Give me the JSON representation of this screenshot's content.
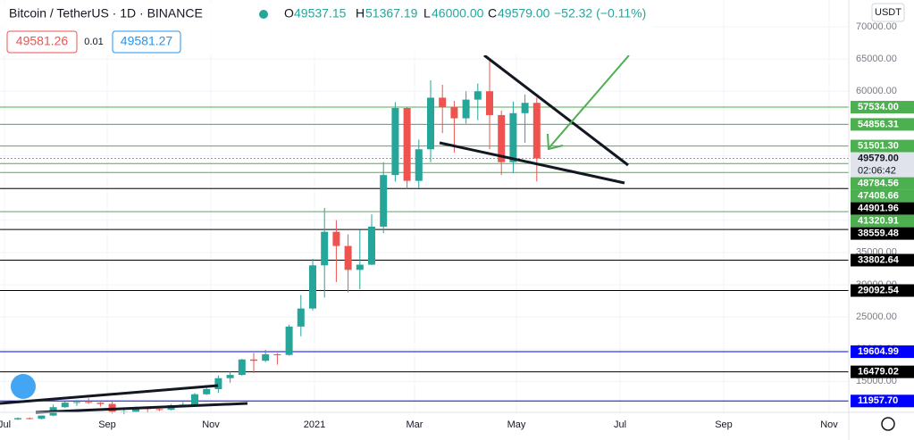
{
  "header": {
    "symbol": "Bitcoin / TetherUS · 1D · BINANCE",
    "open_key": "O",
    "open": "49537.15",
    "high_key": "H",
    "high": "51367.19",
    "low_key": "L",
    "low": "46000.00",
    "close_key": "C",
    "close": "49579.00",
    "change": "−52.32 (−0.11%)",
    "sell": "49581.26",
    "spread": "0.01",
    "buy": "49581.27",
    "currency": "USDT"
  },
  "chart_data": {
    "type": "candlestick",
    "open": [
      9100,
      9300,
      9200,
      9700,
      11000,
      11700,
      11800,
      11700,
      11500,
      10300,
      10300,
      10900,
      10700,
      10600,
      11300,
      11400,
      13000,
      13800,
      15500,
      16000,
      18400,
      18200,
      19200,
      19100,
      23500,
      26300,
      33000,
      38200,
      36000,
      32300,
      33100,
      39000,
      47000,
      57400,
      46100,
      51000,
      59000,
      57500,
      55800,
      58700,
      60000,
      56300,
      49000,
      56600,
      58200
    ],
    "high": [
      9400,
      9400,
      9700,
      11400,
      11900,
      12100,
      12400,
      11800,
      12100,
      10800,
      11100,
      11000,
      10900,
      11500,
      11800,
      13200,
      14000,
      15900,
      16500,
      18500,
      19400,
      19900,
      19400,
      23800,
      28400,
      34000,
      41900,
      40000,
      37800,
      38500,
      40900,
      49000,
      58300,
      57500,
      52500,
      61700,
      61000,
      58500,
      60000,
      61200,
      64800,
      57000,
      58400,
      59500,
      59000
    ],
    "low": [
      9000,
      9100,
      9100,
      9600,
      10900,
      11200,
      11500,
      11100,
      10000,
      9900,
      10200,
      10100,
      10400,
      10500,
      11200,
      11300,
      12900,
      13200,
      14800,
      15900,
      16300,
      18000,
      17600,
      19000,
      22000,
      26000,
      28000,
      30400,
      28800,
      29300,
      33000,
      38000,
      46000,
      44900,
      45000,
      49000,
      53500,
      50500,
      55000,
      55500,
      51000,
      47000,
      47300,
      52000,
      46000
    ],
    "close": [
      9300,
      9200,
      9700,
      11000,
      11700,
      11800,
      11700,
      11500,
      10300,
      10300,
      10900,
      10700,
      10600,
      11300,
      11400,
      13000,
      13800,
      15500,
      16000,
      18400,
      18200,
      19200,
      19100,
      23500,
      26300,
      33000,
      38200,
      36000,
      32300,
      33100,
      39000,
      47000,
      57400,
      46100,
      51000,
      59000,
      57500,
      55800,
      58700,
      60000,
      56300,
      49000,
      56600,
      58200,
      49579
    ],
    "up_color": "#26a69a",
    "down_color": "#ef5350",
    "ylim": [
      10200,
      74150
    ],
    "yticks": [
      {
        "value": 15000,
        "label": "15000.00"
      },
      {
        "value": 20000,
        "label": "20000.00"
      },
      {
        "value": 25000,
        "label": "25000.00"
      },
      {
        "value": 30000,
        "label": "30000.00"
      },
      {
        "value": 35000,
        "label": "35000.00"
      },
      {
        "value": 40000,
        "label": "40000.00"
      },
      {
        "value": 45000,
        "label": "45000.00"
      },
      {
        "value": 50000,
        "label": "50000.00"
      },
      {
        "value": 55000,
        "label": "55000.00"
      },
      {
        "value": 60000,
        "label": "60000.00"
      },
      {
        "value": 65000,
        "label": "65000.00"
      },
      {
        "value": 70000,
        "label": "70000.00"
      }
    ],
    "x_labels": [
      "Jul",
      "Sep",
      "Nov",
      "2021",
      "Mar",
      "May",
      "Jul",
      "Sep",
      "Nov"
    ],
    "levels": [
      {
        "value": 57534,
        "label": "57534.00",
        "color": "#4caf50"
      },
      {
        "value": 54856.31,
        "color": "#4caf50"
      },
      {
        "value": 51501.3,
        "label": "51501.30",
        "color": "#4caf50"
      },
      {
        "value": 48784.56,
        "color": "#4caf50"
      },
      {
        "value": 47408.66,
        "color": "#4caf50"
      },
      {
        "value": 44901.96,
        "color": "#000000"
      },
      {
        "value": 41320.91,
        "color": "#4caf50"
      },
      {
        "value": 38559.48,
        "color": "#000000"
      },
      {
        "value": 33802.64,
        "color": "#000000"
      },
      {
        "value": 29092.54,
        "color": "#000000"
      },
      {
        "value": 19604.99,
        "color": "#0000ff"
      },
      {
        "value": 16479.02,
        "color": "#000000"
      },
      {
        "value": 11957.7,
        "label": "11957.70",
        "color": "#0000ff"
      }
    ],
    "last_price": {
      "value": 49579,
      "label": "49579.00",
      "countdown": "02:06:42"
    }
  }
}
